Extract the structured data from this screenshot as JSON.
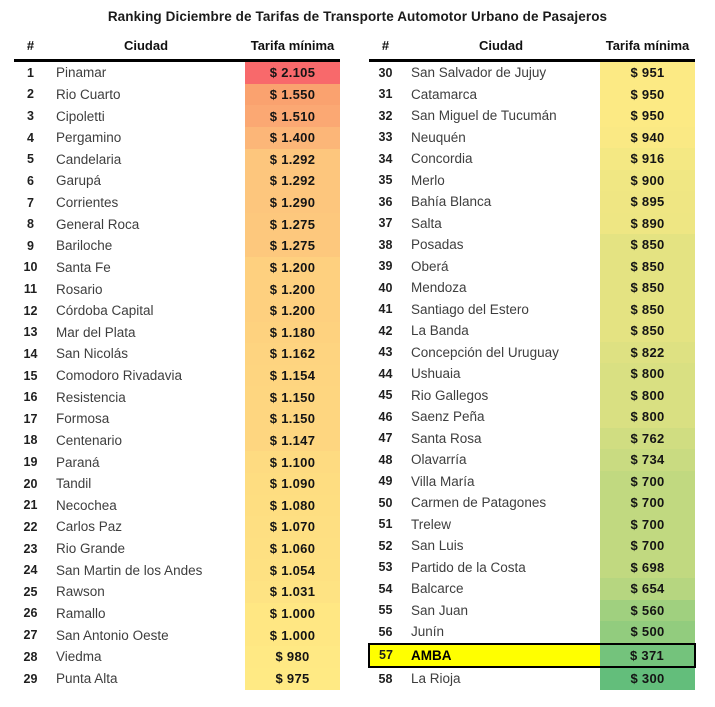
{
  "title": "Ranking Diciembre de Tarifas de Transporte Automotor Urbano de Pasajeros",
  "columns": {
    "rank": "#",
    "city": "Ciudad",
    "fare": "Tarifa mínima"
  },
  "highlight_colors": {
    "row_background": "#FFFF00",
    "row_border": "#000000"
  },
  "color_scale": {
    "max_red": "#F8696B",
    "mid_yellow": "#FFEB84",
    "min_green": "#63BE7B"
  },
  "tables": {
    "left": {
      "rows": [
        {
          "rank": "1",
          "city": "Pinamar",
          "fare": "$ 2.105",
          "color": "#F8696B",
          "highlight": false
        },
        {
          "rank": "2",
          "city": "Rio Cuarto",
          "fare": "$ 1.550",
          "color": "#FAA26F",
          "highlight": false
        },
        {
          "rank": "3",
          "city": "Cipoletti",
          "fare": "$ 1.510",
          "color": "#FBA873",
          "highlight": false
        },
        {
          "rank": "4",
          "city": "Pergamino",
          "fare": "$ 1.400",
          "color": "#FCB678",
          "highlight": false
        },
        {
          "rank": "5",
          "city": "Candelaria",
          "fare": "$ 1.292",
          "color": "#FDC67D",
          "highlight": false
        },
        {
          "rank": "6",
          "city": "Garupá",
          "fare": "$ 1.292",
          "color": "#FDC67D",
          "highlight": false
        },
        {
          "rank": "7",
          "city": "Corrientes",
          "fare": "$ 1.290",
          "color": "#FDC67D",
          "highlight": false
        },
        {
          "rank": "8",
          "city": "General Roca",
          "fare": "$ 1.275",
          "color": "#FDC87D",
          "highlight": false
        },
        {
          "rank": "9",
          "city": "Bariloche",
          "fare": "$ 1.275",
          "color": "#FDC87D",
          "highlight": false
        },
        {
          "rank": "10",
          "city": "Santa Fe",
          "fare": "$ 1.200",
          "color": "#FED07F",
          "highlight": false
        },
        {
          "rank": "11",
          "city": "Rosario",
          "fare": "$ 1.200",
          "color": "#FED07F",
          "highlight": false
        },
        {
          "rank": "12",
          "city": "Córdoba Capital",
          "fare": "$ 1.200",
          "color": "#FED07F",
          "highlight": false
        },
        {
          "rank": "13",
          "city": "Mar del Plata",
          "fare": "$ 1.180",
          "color": "#FED27F",
          "highlight": false
        },
        {
          "rank": "14",
          "city": "San Nicolás",
          "fare": "$ 1.162",
          "color": "#FED480",
          "highlight": false
        },
        {
          "rank": "15",
          "city": "Comodoro Rivadavia",
          "fare": "$ 1.154",
          "color": "#FED580",
          "highlight": false
        },
        {
          "rank": "16",
          "city": "Resistencia",
          "fare": "$ 1.150",
          "color": "#FED680",
          "highlight": false
        },
        {
          "rank": "17",
          "city": "Formosa",
          "fare": "$ 1.150",
          "color": "#FED680",
          "highlight": false
        },
        {
          "rank": "18",
          "city": "Centenario",
          "fare": "$ 1.147",
          "color": "#FED680",
          "highlight": false
        },
        {
          "rank": "19",
          "city": "Paraná",
          "fare": "$ 1.100",
          "color": "#FEDB81",
          "highlight": false
        },
        {
          "rank": "20",
          "city": "Tandil",
          "fare": "$ 1.090",
          "color": "#FEDD81",
          "highlight": false
        },
        {
          "rank": "21",
          "city": "Necochea",
          "fare": "$ 1.080",
          "color": "#FEDE81",
          "highlight": false
        },
        {
          "rank": "22",
          "city": "Carlos Paz",
          "fare": "$ 1.070",
          "color": "#FEDF82",
          "highlight": false
        },
        {
          "rank": "23",
          "city": "Rio Grande",
          "fare": "$ 1.060",
          "color": "#FEE082",
          "highlight": false
        },
        {
          "rank": "24",
          "city": "San Martin de los Andes",
          "fare": "$ 1.054",
          "color": "#FEE182",
          "highlight": false
        },
        {
          "rank": "25",
          "city": "Rawson",
          "fare": "$ 1.031",
          "color": "#FEE383",
          "highlight": false
        },
        {
          "rank": "26",
          "city": "Ramallo",
          "fare": "$ 1.000",
          "color": "#FFE783",
          "highlight": false
        },
        {
          "rank": "27",
          "city": "San Antonio Oeste",
          "fare": "$ 1.000",
          "color": "#FFE783",
          "highlight": false
        },
        {
          "rank": "28",
          "city": "Viedma",
          "fare": "$ 980",
          "color": "#FFE984",
          "highlight": false
        },
        {
          "rank": "29",
          "city": "Punta Alta",
          "fare": "$ 975",
          "color": "#FFEA84",
          "highlight": false
        }
      ]
    },
    "right": {
      "rows": [
        {
          "rank": "30",
          "city": "San Salvador de Jujuy",
          "fare": "$ 951",
          "color": "#FCEA84",
          "highlight": false
        },
        {
          "rank": "31",
          "city": "Catamarca",
          "fare": "$ 950",
          "color": "#FCEA84",
          "highlight": false
        },
        {
          "rank": "32",
          "city": "San Miguel de Tucumán",
          "fare": "$ 950",
          "color": "#FCEA84",
          "highlight": false
        },
        {
          "rank": "33",
          "city": "Neuquén",
          "fare": "$ 940",
          "color": "#FAE984",
          "highlight": false
        },
        {
          "rank": "34",
          "city": "Concordia",
          "fare": "$ 916",
          "color": "#F4E883",
          "highlight": false
        },
        {
          "rank": "35",
          "city": "Merlo",
          "fare": "$ 900",
          "color": "#F0E783",
          "highlight": false
        },
        {
          "rank": "36",
          "city": "Bahía Blanca",
          "fare": "$ 895",
          "color": "#EFE683",
          "highlight": false
        },
        {
          "rank": "37",
          "city": "Salta",
          "fare": "$ 890",
          "color": "#EEE683",
          "highlight": false
        },
        {
          "rank": "38",
          "city": "Posadas",
          "fare": "$ 850",
          "color": "#E4E382",
          "highlight": false
        },
        {
          "rank": "39",
          "city": "Oberá",
          "fare": "$ 850",
          "color": "#E4E382",
          "highlight": false
        },
        {
          "rank": "40",
          "city": "Mendoza",
          "fare": "$ 850",
          "color": "#E4E382",
          "highlight": false
        },
        {
          "rank": "41",
          "city": "Santiago del Estero",
          "fare": "$ 850",
          "color": "#E4E382",
          "highlight": false
        },
        {
          "rank": "42",
          "city": "La Banda",
          "fare": "$ 850",
          "color": "#E4E382",
          "highlight": false
        },
        {
          "rank": "43",
          "city": "Concepción del Uruguay",
          "fare": "$ 822",
          "color": "#DEE182",
          "highlight": false
        },
        {
          "rank": "44",
          "city": "Ushuaia",
          "fare": "$ 800",
          "color": "#D9E082",
          "highlight": false
        },
        {
          "rank": "45",
          "city": "Rio Gallegos",
          "fare": "$ 800",
          "color": "#D9E082",
          "highlight": false
        },
        {
          "rank": "46",
          "city": "Saenz Peña",
          "fare": "$ 800",
          "color": "#D9E082",
          "highlight": false
        },
        {
          "rank": "47",
          "city": "Santa Rosa",
          "fare": "$ 762",
          "color": "#D0DD81",
          "highlight": false
        },
        {
          "rank": "48",
          "city": "Olavarría",
          "fare": "$ 734",
          "color": "#C9DB81",
          "highlight": false
        },
        {
          "rank": "49",
          "city": "Villa María",
          "fare": "$ 700",
          "color": "#C1D980",
          "highlight": false
        },
        {
          "rank": "50",
          "city": "Carmen de Patagones",
          "fare": "$ 700",
          "color": "#C1D980",
          "highlight": false
        },
        {
          "rank": "51",
          "city": "Trelew",
          "fare": "$ 700",
          "color": "#C1D980",
          "highlight": false
        },
        {
          "rank": "52",
          "city": "San Luis",
          "fare": "$ 700",
          "color": "#C1D980",
          "highlight": false
        },
        {
          "rank": "53",
          "city": "Partido de la Costa",
          "fare": "$ 698",
          "color": "#C1D980",
          "highlight": false
        },
        {
          "rank": "54",
          "city": "Balcarce",
          "fare": "$ 654",
          "color": "#B6D680",
          "highlight": false
        },
        {
          "rank": "55",
          "city": "San Juan",
          "fare": "$ 560",
          "color": "#A0D07F",
          "highlight": false
        },
        {
          "rank": "56",
          "city": "Junín",
          "fare": "$ 500",
          "color": "#92CC7E",
          "highlight": false
        },
        {
          "rank": "57",
          "city": "AMBA",
          "fare": "$ 371",
          "color": "#74C37C",
          "highlight": true
        },
        {
          "rank": "58",
          "city": "La Rioja",
          "fare": "$ 300",
          "color": "#63BE7B",
          "highlight": false
        }
      ]
    }
  },
  "chart_data": {
    "type": "table",
    "title": "Ranking Diciembre de Tarifas de Transporte Automotor Urbano de Pasajeros",
    "columns": [
      "#",
      "Ciudad",
      "Tarifa mínima"
    ],
    "value_range": [
      300,
      2105
    ],
    "highlighted_row": 57,
    "rows": [
      [
        1,
        "Pinamar",
        2105
      ],
      [
        2,
        "Rio Cuarto",
        1550
      ],
      [
        3,
        "Cipoletti",
        1510
      ],
      [
        4,
        "Pergamino",
        1400
      ],
      [
        5,
        "Candelaria",
        1292
      ],
      [
        6,
        "Garupá",
        1292
      ],
      [
        7,
        "Corrientes",
        1290
      ],
      [
        8,
        "General Roca",
        1275
      ],
      [
        9,
        "Bariloche",
        1275
      ],
      [
        10,
        "Santa Fe",
        1200
      ],
      [
        11,
        "Rosario",
        1200
      ],
      [
        12,
        "Córdoba Capital",
        1200
      ],
      [
        13,
        "Mar del Plata",
        1180
      ],
      [
        14,
        "San Nicolás",
        1162
      ],
      [
        15,
        "Comodoro Rivadavia",
        1154
      ],
      [
        16,
        "Resistencia",
        1150
      ],
      [
        17,
        "Formosa",
        1150
      ],
      [
        18,
        "Centenario",
        1147
      ],
      [
        19,
        "Paraná",
        1100
      ],
      [
        20,
        "Tandil",
        1090
      ],
      [
        21,
        "Necochea",
        1080
      ],
      [
        22,
        "Carlos Paz",
        1070
      ],
      [
        23,
        "Rio Grande",
        1060
      ],
      [
        24,
        "San Martin de los Andes",
        1054
      ],
      [
        25,
        "Rawson",
        1031
      ],
      [
        26,
        "Ramallo",
        1000
      ],
      [
        27,
        "San Antonio Oeste",
        1000
      ],
      [
        28,
        "Viedma",
        980
      ],
      [
        29,
        "Punta Alta",
        975
      ],
      [
        30,
        "San Salvador de Jujuy",
        951
      ],
      [
        31,
        "Catamarca",
        950
      ],
      [
        32,
        "San Miguel de Tucumán",
        950
      ],
      [
        33,
        "Neuquén",
        940
      ],
      [
        34,
        "Concordia",
        916
      ],
      [
        35,
        "Merlo",
        900
      ],
      [
        36,
        "Bahía Blanca",
        895
      ],
      [
        37,
        "Salta",
        890
      ],
      [
        38,
        "Posadas",
        850
      ],
      [
        39,
        "Oberá",
        850
      ],
      [
        40,
        "Mendoza",
        850
      ],
      [
        41,
        "Santiago del Estero",
        850
      ],
      [
        42,
        "La Banda",
        850
      ],
      [
        43,
        "Concepción del Uruguay",
        822
      ],
      [
        44,
        "Ushuaia",
        800
      ],
      [
        45,
        "Rio Gallegos",
        800
      ],
      [
        46,
        "Saenz Peña",
        800
      ],
      [
        47,
        "Santa Rosa",
        762
      ],
      [
        48,
        "Olavarría",
        734
      ],
      [
        49,
        "Villa María",
        700
      ],
      [
        50,
        "Carmen de Patagones",
        700
      ],
      [
        51,
        "Trelew",
        700
      ],
      [
        52,
        "San Luis",
        700
      ],
      [
        53,
        "Partido de la Costa",
        698
      ],
      [
        54,
        "Balcarce",
        654
      ],
      [
        55,
        "San Juan",
        560
      ],
      [
        56,
        "Junín",
        500
      ],
      [
        57,
        "AMBA",
        371
      ],
      [
        58,
        "La Rioja",
        300
      ]
    ]
  }
}
